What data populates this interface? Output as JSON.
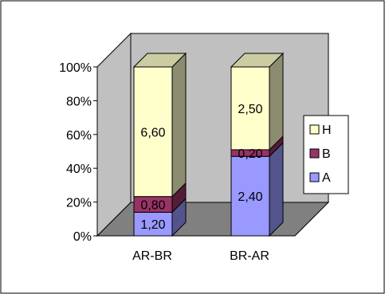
{
  "chart_data": {
    "type": "bar",
    "stacked": true,
    "percent_stacked": true,
    "three_d": true,
    "categories": [
      "AR-BR",
      "BR-AR"
    ],
    "series": [
      {
        "name": "A",
        "values": [
          1.2,
          2.4
        ],
        "labels": [
          "1,20",
          "2,40"
        ],
        "color": "#9999ff"
      },
      {
        "name": "B",
        "values": [
          0.8,
          0.2
        ],
        "labels": [
          "0,80",
          "0,20"
        ],
        "color": "#993366"
      },
      {
        "name": "H",
        "values": [
          6.6,
          2.5
        ],
        "labels": [
          "6,60",
          "2,50"
        ],
        "color": "#ffffcc"
      }
    ],
    "y_ticks": [
      "0%",
      "20%",
      "40%",
      "60%",
      "80%",
      "100%"
    ],
    "ylim": [
      0,
      100
    ],
    "grid": false,
    "legend_position": "right",
    "colors": {
      "wall": "#c0c0c0",
      "floor": "#808080"
    }
  }
}
